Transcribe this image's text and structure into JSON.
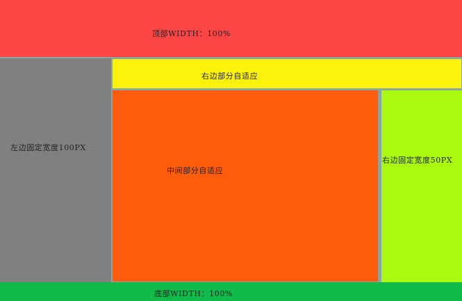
{
  "layout_demo": {
    "top": {
      "label": "顶部WIDTH：100%",
      "color": "#fd4546"
    },
    "left": {
      "label": "左边固定宽度100PX",
      "color": "#808080"
    },
    "right_top": {
      "label": "右边部分自适应",
      "color": "#fdf20b"
    },
    "middle": {
      "label": "中间部分自适应",
      "color": "#fe5c0d"
    },
    "right_fixed": {
      "label": "右边固定宽度50PX",
      "color": "#aafa0f"
    },
    "bottom": {
      "label": "底部WIDTH：100%",
      "color": "#10bb4c"
    }
  }
}
